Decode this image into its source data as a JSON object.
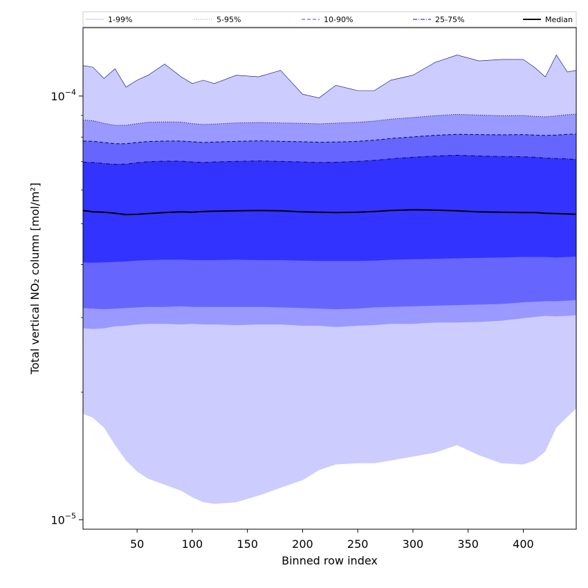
{
  "chart_data": {
    "type": "area",
    "title": "",
    "xlabel": "Binned row index",
    "ylabel": "Total vertical NO₂ column [mol/m²]",
    "xscale": "linear",
    "yscale": "log",
    "xlim": [
      1,
      448
    ],
    "ylim": [
      9.5e-06,
      0.000145
    ],
    "xticks": [
      50,
      100,
      150,
      200,
      250,
      300,
      350,
      400
    ],
    "yticks": [
      {
        "value": 1e-05,
        "base": "10",
        "exp": "−5"
      },
      {
        "value": 0.0001,
        "base": "10",
        "exp": "−4"
      }
    ],
    "grid": false,
    "legend_position": "top",
    "legend": [
      {
        "label": "1-99%",
        "color": "#ccccff",
        "style": "solid"
      },
      {
        "label": "5-95%",
        "color": "#9999ff",
        "style": "dotted"
      },
      {
        "label": "10-90%",
        "color": "#6666ff",
        "style": "dashed"
      },
      {
        "label": "25-75%",
        "color": "#3333ff",
        "style": "dashdot"
      },
      {
        "label": "Median",
        "color": "#000000",
        "style": "solid"
      }
    ],
    "x": [
      1,
      10,
      20,
      30,
      40,
      50,
      60,
      75,
      90,
      100,
      110,
      120,
      140,
      160,
      180,
      200,
      215,
      230,
      250,
      265,
      280,
      300,
      320,
      340,
      360,
      380,
      400,
      410,
      420,
      430,
      440,
      448
    ],
    "bands": [
      {
        "name": "1-99%",
        "color": "#ccccff",
        "lower": [
          1.78e-05,
          1.74e-05,
          1.65e-05,
          1.5e-05,
          1.38e-05,
          1.3e-05,
          1.25e-05,
          1.21e-05,
          1.17e-05,
          1.13e-05,
          1.1e-05,
          1.09e-05,
          1.1e-05,
          1.14e-05,
          1.19e-05,
          1.24e-05,
          1.31e-05,
          1.35e-05,
          1.36e-05,
          1.36e-05,
          1.38e-05,
          1.41e-05,
          1.44e-05,
          1.5e-05,
          1.42e-05,
          1.36e-05,
          1.35e-05,
          1.38e-05,
          1.45e-05,
          1.65e-05,
          1.75e-05,
          1.83e-05
        ],
        "upper": [
          0.000118,
          0.000117,
          0.00011,
          0.000116,
          0.000105,
          0.000109,
          0.000112,
          0.000119,
          0.000111,
          0.000107,
          0.000109,
          0.000107,
          0.000112,
          0.000111,
          0.000115,
          0.000101,
          9.9e-05,
          0.000106,
          0.000103,
          0.000103,
          0.000109,
          0.000112,
          0.00012,
          0.000125,
          0.000121,
          0.000122,
          0.000122,
          0.000117,
          0.000111,
          0.000125,
          0.000114,
          0.000115
        ]
      },
      {
        "name": "5-95%",
        "color": "#9999ff",
        "lower": [
          2.83e-05,
          2.82e-05,
          2.83e-05,
          2.86e-05,
          2.87e-05,
          2.89e-05,
          2.9e-05,
          2.9e-05,
          2.89e-05,
          2.9e-05,
          2.89e-05,
          2.89e-05,
          2.88e-05,
          2.89e-05,
          2.89e-05,
          2.87e-05,
          2.87e-05,
          2.85e-05,
          2.87e-05,
          2.88e-05,
          2.9e-05,
          2.9e-05,
          2.92e-05,
          2.92e-05,
          2.93e-05,
          2.95e-05,
          2.99e-05,
          3.01e-05,
          3.03e-05,
          3.02e-05,
          3.03e-05,
          3.04e-05
        ],
        "upper": [
          8.78e-05,
          8.75e-05,
          8.62e-05,
          8.53e-05,
          8.53e-05,
          8.61e-05,
          8.67e-05,
          8.69e-05,
          8.68e-05,
          8.61e-05,
          8.57e-05,
          8.59e-05,
          8.64e-05,
          8.66e-05,
          8.64e-05,
          8.62e-05,
          8.6e-05,
          8.63e-05,
          8.67e-05,
          8.73e-05,
          8.82e-05,
          8.9e-05,
          8.99e-05,
          9.05e-05,
          9.02e-05,
          8.99e-05,
          9e-05,
          8.96e-05,
          8.93e-05,
          8.98e-05,
          9.04e-05,
          9.06e-05
        ]
      },
      {
        "name": "10-90%",
        "color": "#6666ff",
        "lower": [
          3.16e-05,
          3.15e-05,
          3.14e-05,
          3.15e-05,
          3.16e-05,
          3.17e-05,
          3.18e-05,
          3.18e-05,
          3.19e-05,
          3.18e-05,
          3.18e-05,
          3.18e-05,
          3.18e-05,
          3.18e-05,
          3.17e-05,
          3.16e-05,
          3.15e-05,
          3.14e-05,
          3.15e-05,
          3.17e-05,
          3.18e-05,
          3.19e-05,
          3.2e-05,
          3.21e-05,
          3.22e-05,
          3.23e-05,
          3.26e-05,
          3.27e-05,
          3.28e-05,
          3.28e-05,
          3.29e-05,
          3.3e-05
        ],
        "upper": [
          7.83e-05,
          7.82e-05,
          7.77e-05,
          7.72e-05,
          7.72e-05,
          7.77e-05,
          7.81e-05,
          7.83e-05,
          7.83e-05,
          7.8e-05,
          7.77e-05,
          7.79e-05,
          7.82e-05,
          7.84e-05,
          7.82e-05,
          7.8e-05,
          7.78e-05,
          7.79e-05,
          7.82e-05,
          7.87e-05,
          7.94e-05,
          8.01e-05,
          8.08e-05,
          8.12e-05,
          8.11e-05,
          8.1e-05,
          8.11e-05,
          8.09e-05,
          8.07e-05,
          8.09e-05,
          8.12e-05,
          8.13e-05
        ]
      },
      {
        "name": "25-75%",
        "color": "#3333ff",
        "lower": [
          4.05e-05,
          4.04e-05,
          4.05e-05,
          4.06e-05,
          4.07e-05,
          4.09e-05,
          4.1e-05,
          4.11e-05,
          4.11e-05,
          4.1e-05,
          4.1e-05,
          4.1e-05,
          4.11e-05,
          4.1e-05,
          4.1e-05,
          4.09e-05,
          4.08e-05,
          4.08e-05,
          4.08e-05,
          4.09e-05,
          4.11e-05,
          4.12e-05,
          4.13e-05,
          4.14e-05,
          4.15e-05,
          4.16e-05,
          4.17e-05,
          4.17e-05,
          4.17e-05,
          4.16e-05,
          4.17e-05,
          4.18e-05
        ],
        "upper": [
          6.98e-05,
          6.97e-05,
          6.93e-05,
          6.9e-05,
          6.91e-05,
          6.96e-05,
          7e-05,
          7.02e-05,
          7.02e-05,
          6.99e-05,
          6.97e-05,
          6.99e-05,
          7.01e-05,
          7.03e-05,
          7.01e-05,
          6.99e-05,
          6.97e-05,
          6.98e-05,
          7.01e-05,
          7.05e-05,
          7.11e-05,
          7.17e-05,
          7.22e-05,
          7.25e-05,
          7.22e-05,
          7.2e-05,
          7.19e-05,
          7.17e-05,
          7.14e-05,
          7.12e-05,
          7.11e-05,
          7.08e-05
        ]
      }
    ],
    "median": {
      "name": "Median",
      "color": "#000000",
      "values": [
        5.37e-05,
        5.33e-05,
        5.32e-05,
        5.29e-05,
        5.25e-05,
        5.26e-05,
        5.28e-05,
        5.31e-05,
        5.33e-05,
        5.32e-05,
        5.34e-05,
        5.35e-05,
        5.36e-05,
        5.37e-05,
        5.36e-05,
        5.33e-05,
        5.32e-05,
        5.31e-05,
        5.32e-05,
        5.34e-05,
        5.37e-05,
        5.39e-05,
        5.38e-05,
        5.36e-05,
        5.33e-05,
        5.32e-05,
        5.31e-05,
        5.31e-05,
        5.29e-05,
        5.28e-05,
        5.27e-05,
        5.26e-05
      ]
    }
  }
}
